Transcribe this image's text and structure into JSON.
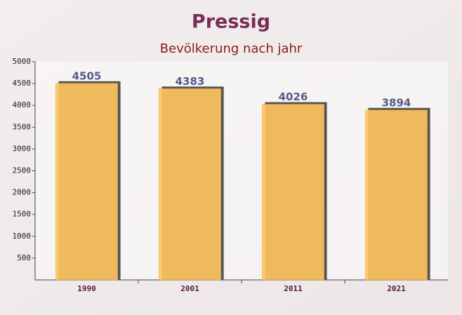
{
  "chart_data": {
    "type": "bar",
    "title": "Pressig",
    "subtitle": "Bevölkerung nach jahr",
    "categories": [
      "1990",
      "2001",
      "2011",
      "2021"
    ],
    "values": [
      4505,
      4383,
      4026,
      3894
    ],
    "color": "#ffc65c",
    "ylim": [
      0,
      5000
    ],
    "yticks": [
      500,
      1000,
      1500,
      2000,
      2500,
      3000,
      3500,
      4000,
      4500,
      5000
    ]
  }
}
